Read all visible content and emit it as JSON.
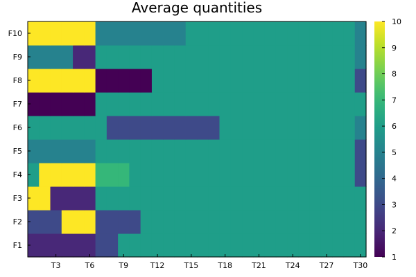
{
  "chart_data": {
    "type": "heatmap",
    "title": "Average quantities",
    "xlabel": "",
    "ylabel": "",
    "x": [
      1,
      2,
      3,
      4,
      5,
      6,
      7,
      8,
      9,
      10,
      11,
      12,
      13,
      14,
      15,
      16,
      17,
      18,
      19,
      20,
      21,
      22,
      23,
      24,
      25,
      26,
      27,
      28,
      29,
      30
    ],
    "x_tick_values": [
      3,
      6,
      9,
      12,
      15,
      18,
      21,
      24,
      27,
      30
    ],
    "x_tick_labels": [
      "T3",
      "T6",
      "T9",
      "T12",
      "T15",
      "T18",
      "T21",
      "T24",
      "T27",
      "T30"
    ],
    "y_labels": [
      "F1",
      "F2",
      "F3",
      "F4",
      "F5",
      "F6",
      "F7",
      "F8",
      "F9",
      "F10"
    ],
    "z": [
      [
        2,
        2,
        2,
        2,
        2,
        2,
        3,
        3,
        6,
        6,
        6,
        6,
        6,
        6,
        6,
        6,
        6,
        6,
        6,
        6,
        6,
        6,
        6,
        6,
        6,
        6,
        6,
        6,
        6,
        6
      ],
      [
        3,
        3,
        3,
        10,
        10,
        10,
        3,
        3,
        3,
        3,
        6,
        6,
        6,
        6,
        6,
        6,
        6,
        6,
        6,
        6,
        6,
        6,
        6,
        6,
        6,
        6,
        6,
        6,
        6,
        6
      ],
      [
        10,
        10,
        2,
        2,
        2,
        2,
        6,
        6,
        6,
        6,
        6,
        6,
        6,
        6,
        6,
        6,
        6,
        6,
        6,
        6,
        6,
        6,
        6,
        6,
        6,
        6,
        6,
        6,
        6,
        6
      ],
      [
        6,
        10,
        10,
        10,
        10,
        10,
        7,
        7,
        7,
        6,
        6,
        6,
        6,
        6,
        6,
        6,
        6,
        6,
        6,
        6,
        6,
        6,
        6,
        6,
        6,
        6,
        6,
        6,
        6,
        3
      ],
      [
        5,
        5,
        5,
        5,
        5,
        5,
        6,
        6,
        6,
        6,
        6,
        6,
        6,
        6,
        6,
        6,
        6,
        6,
        6,
        6,
        6,
        6,
        6,
        6,
        6,
        6,
        6,
        6,
        6,
        3
      ],
      [
        6,
        6,
        6,
        6,
        6,
        6,
        6,
        3,
        3,
        3,
        3,
        3,
        3,
        3,
        3,
        3,
        3,
        6,
        6,
        6,
        6,
        6,
        6,
        6,
        6,
        6,
        6,
        6,
        6,
        5
      ],
      [
        1,
        1,
        1,
        1,
        1,
        1,
        6,
        6,
        6,
        6,
        6,
        6,
        6,
        6,
        6,
        6,
        6,
        6,
        6,
        6,
        6,
        6,
        6,
        6,
        6,
        6,
        6,
        6,
        6,
        6
      ],
      [
        10,
        10,
        10,
        10,
        10,
        10,
        1,
        1,
        1,
        1,
        1,
        6,
        6,
        6,
        6,
        6,
        6,
        6,
        6,
        6,
        6,
        6,
        6,
        6,
        6,
        6,
        6,
        6,
        6,
        3
      ],
      [
        5,
        5,
        5,
        5,
        2,
        2,
        6,
        6,
        6,
        6,
        6,
        6,
        6,
        6,
        6,
        6,
        6,
        6,
        6,
        6,
        6,
        6,
        6,
        6,
        6,
        6,
        6,
        6,
        6,
        5
      ],
      [
        10,
        10,
        10,
        10,
        10,
        10,
        5,
        5,
        5,
        5,
        5,
        5,
        5,
        5,
        6,
        6,
        6,
        6,
        6,
        6,
        6,
        6,
        6,
        6,
        6,
        6,
        6,
        6,
        6,
        5
      ]
    ],
    "colorbar": {
      "min": 1,
      "max": 10,
      "ticks": [
        "1",
        "2",
        "3",
        "4",
        "5",
        "6",
        "7",
        "8",
        "9",
        "10"
      ],
      "colormap": "viridis"
    },
    "grid": false,
    "legend": "colorbar-right"
  }
}
